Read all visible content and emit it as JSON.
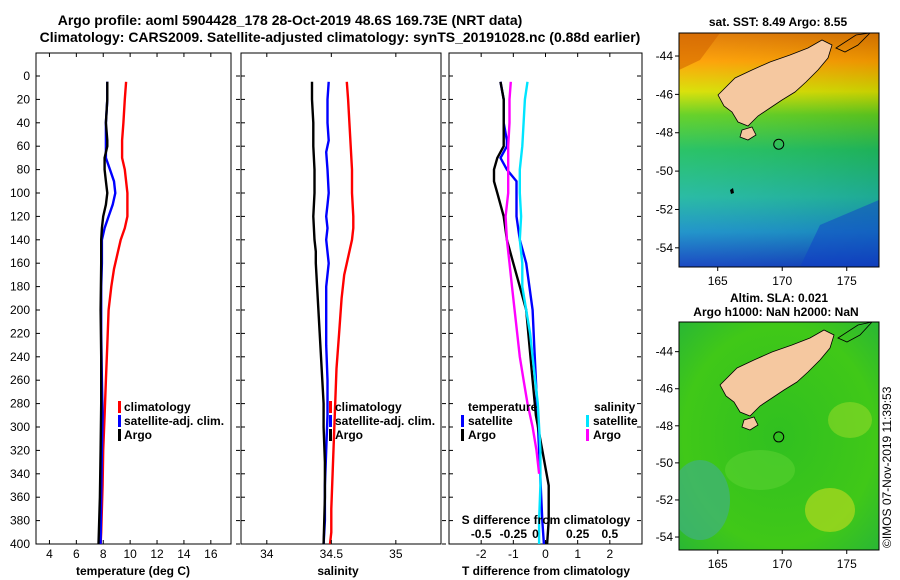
{
  "header": {
    "line1": "Argo profile: aoml 5904428_178 28-Oct-2019 48.6S 169.73E (NRT data)",
    "line2": "Climatology: CARS2009. Satellite-adjusted climatology: synTS_20191028.nc (0.88d earlier)"
  },
  "colors": {
    "climatology": "#ff0000",
    "satellite": "#0000ff",
    "argo": "#000000",
    "s_satellite": "#00e5ff",
    "s_argo": "#ff00ff",
    "land": "#f5c8a0"
  },
  "depth_axis": {
    "range": [
      0,
      400
    ],
    "ticks": [
      0,
      20,
      40,
      60,
      80,
      100,
      120,
      140,
      160,
      180,
      200,
      220,
      240,
      260,
      280,
      300,
      320,
      340,
      360,
      380,
      400
    ]
  },
  "chart_data": [
    {
      "type": "line",
      "name": "temperature",
      "xlabel": "temperature (deg C)",
      "xlim": [
        3,
        17.5
      ],
      "xticks": [
        4,
        6,
        8,
        10,
        12,
        14,
        16
      ],
      "legend": [
        "climatology",
        "satellite-adj. clim.",
        "Argo"
      ],
      "series": [
        {
          "name": "climatology",
          "color": "#ff0000",
          "x": [
            9.7,
            9.6,
            9.5,
            9.4,
            9.4,
            9.6,
            9.8,
            9.8,
            9.8,
            9.6,
            9.3,
            9.1,
            8.8,
            8.6,
            8.4,
            8.3,
            8.2,
            8.1,
            8.0,
            7.95,
            7.9,
            7.85,
            7.8
          ],
          "depth": [
            5,
            20,
            40,
            55,
            70,
            80,
            100,
            110,
            120,
            130,
            140,
            150,
            165,
            180,
            200,
            230,
            260,
            290,
            320,
            350,
            370,
            390,
            400
          ]
        },
        {
          "name": "satellite-adj. clim.",
          "color": "#0000ff",
          "x": [
            8.3,
            8.3,
            8.2,
            8.2,
            8.2,
            8.2,
            8.5,
            8.8,
            8.9,
            8.7,
            8.4,
            8.1,
            7.9,
            7.9,
            7.85,
            7.85,
            7.9,
            7.95,
            7.9,
            7.85,
            7.8
          ],
          "depth": [
            5,
            20,
            40,
            55,
            60,
            70,
            80,
            90,
            100,
            110,
            120,
            130,
            140,
            160,
            180,
            220,
            260,
            290,
            320,
            360,
            400
          ]
        },
        {
          "name": "Argo",
          "color": "#000000",
          "x": [
            8.3,
            8.3,
            8.2,
            8.3,
            8.3,
            8.1,
            8.1,
            8.2,
            8.3,
            8.2,
            8.0,
            7.9,
            7.85,
            7.85,
            7.8,
            7.85,
            7.85,
            7.8,
            7.75,
            7.7,
            7.65
          ],
          "depth": [
            5,
            20,
            40,
            55,
            60,
            70,
            80,
            90,
            100,
            110,
            120,
            130,
            140,
            160,
            200,
            240,
            280,
            320,
            360,
            380,
            400
          ]
        }
      ]
    },
    {
      "type": "line",
      "name": "salinity",
      "xlabel": "salinity",
      "xlim": [
        33.8,
        35.35
      ],
      "xticks": [
        34,
        34.5,
        35
      ],
      "xtick_labels": [
        "34",
        "34.5",
        "35"
      ],
      "legend": [
        "climatology",
        "satellite-adj. clim.",
        "Argo"
      ],
      "series": [
        {
          "name": "climatology",
          "color": "#ff0000",
          "x": [
            34.62,
            34.63,
            34.64,
            34.65,
            34.66,
            34.66,
            34.67,
            34.67,
            34.66,
            34.64,
            34.62,
            34.6,
            34.58,
            34.56,
            34.54,
            34.53,
            34.52,
            34.51,
            34.5,
            34.5,
            34.49
          ],
          "depth": [
            5,
            20,
            40,
            60,
            80,
            100,
            120,
            130,
            140,
            150,
            160,
            170,
            190,
            220,
            250,
            280,
            310,
            340,
            370,
            390,
            400
          ]
        },
        {
          "name": "satellite-adj. clim.",
          "color": "#0000ff",
          "x": [
            34.48,
            34.47,
            34.47,
            34.48,
            34.46,
            34.47,
            34.48,
            34.47,
            34.46,
            34.47,
            34.46,
            34.48,
            34.46,
            34.46,
            34.46,
            34.47,
            34.47,
            34.46,
            34.45,
            34.45,
            34.44
          ],
          "depth": [
            5,
            20,
            40,
            55,
            65,
            80,
            100,
            110,
            120,
            130,
            140,
            160,
            180,
            200,
            230,
            260,
            290,
            320,
            350,
            380,
            400
          ]
        },
        {
          "name": "Argo",
          "color": "#000000",
          "x": [
            34.35,
            34.35,
            34.36,
            34.36,
            34.37,
            34.37,
            34.36,
            34.37,
            34.38,
            34.38,
            34.39,
            34.4,
            34.41,
            34.42,
            34.43,
            34.44,
            34.44,
            34.45,
            34.45,
            34.44
          ],
          "depth": [
            5,
            20,
            40,
            60,
            80,
            100,
            120,
            140,
            150,
            160,
            180,
            200,
            220,
            240,
            260,
            280,
            300,
            330,
            360,
            400
          ]
        }
      ]
    },
    {
      "type": "line",
      "name": "difference",
      "xlabel": "T difference from climatology",
      "s_axis_label": "S difference from climatology",
      "xlim": [
        -3,
        3
      ],
      "xticks": [
        -2,
        -1,
        0,
        1,
        2
      ],
      "s_ticks": [
        "-0.5",
        "-0.25",
        "0",
        "0.25",
        "0.5"
      ],
      "s_tick_positions": [
        -2,
        -1,
        0,
        1,
        2
      ],
      "legend_left_title": "temperature",
      "legend_right_title": "salinity",
      "legend_left": [
        "satellite",
        "Argo"
      ],
      "legend_right": [
        "satellite",
        "Argo"
      ],
      "series": [
        {
          "name": "T satellite",
          "color": "#0000ff",
          "x": [
            -1.4,
            -1.3,
            -1.3,
            -1.2,
            -1.2,
            -1.4,
            -1.2,
            -0.9,
            -0.9,
            -0.9,
            -0.9,
            -0.8,
            -0.6,
            -0.5,
            -0.4,
            -0.35,
            -0.3,
            -0.25,
            -0.2,
            -0.15,
            -0.1,
            -0.05
          ],
          "depth": [
            5,
            20,
            40,
            55,
            60,
            70,
            80,
            90,
            100,
            110,
            120,
            140,
            160,
            180,
            200,
            230,
            260,
            290,
            320,
            350,
            380,
            400
          ]
        },
        {
          "name": "T Argo",
          "color": "#000000",
          "x": [
            -1.4,
            -1.3,
            -1.3,
            -1.3,
            -1.3,
            -1.5,
            -1.6,
            -1.6,
            -1.5,
            -1.4,
            -1.3,
            -1.2,
            -1.0,
            -0.8,
            -0.6,
            -0.5,
            -0.4,
            -0.3,
            -0.1,
            0.1,
            0.1,
            0.05
          ],
          "depth": [
            5,
            20,
            40,
            55,
            60,
            70,
            80,
            90,
            100,
            110,
            120,
            140,
            160,
            180,
            200,
            230,
            260,
            290,
            320,
            350,
            380,
            400
          ]
        },
        {
          "name": "S satellite",
          "color": "#00e5ff",
          "x": [
            -0.56,
            -0.64,
            -0.68,
            -0.72,
            -0.8,
            -0.8,
            -0.76,
            -0.8,
            -0.72,
            -0.72,
            -0.6,
            -0.48,
            -0.4,
            -0.32,
            -0.24,
            -0.2,
            -0.16,
            -0.16,
            -0.2,
            -0.2
          ],
          "depth": [
            5,
            20,
            40,
            60,
            80,
            100,
            120,
            140,
            160,
            180,
            200,
            220,
            240,
            260,
            280,
            300,
            320,
            350,
            380,
            400
          ]
        },
        {
          "name": "S Argo",
          "color": "#ff00ff",
          "x": [
            -1.08,
            -1.12,
            -1.12,
            -1.16,
            -1.16,
            -1.16,
            -1.24,
            -1.2,
            -1.12,
            -1.04,
            -0.96,
            -0.88,
            -0.8,
            -0.68,
            -0.56,
            -0.4,
            -0.28,
            -0.2
          ],
          "depth": [
            5,
            20,
            40,
            60,
            80,
            100,
            120,
            140,
            160,
            180,
            200,
            220,
            240,
            260,
            280,
            300,
            320,
            340
          ]
        }
      ]
    },
    {
      "type": "heatmap",
      "name": "sst-map",
      "title": "sat. SST: 8.49 Argo: 8.55",
      "xticks": [
        165,
        170,
        175
      ],
      "yticks": [
        -44,
        -46,
        -48,
        -50,
        -52,
        -54
      ],
      "xlim": [
        162,
        177.5
      ],
      "ylim": [
        -55.0,
        -42.8
      ],
      "profile_location": {
        "lon": 169.73,
        "lat": -48.6
      }
    },
    {
      "type": "heatmap",
      "name": "sla-map",
      "title1": "Altim. SLA: 0.021",
      "title2": "Argo h1000: NaN h2000: NaN",
      "xticks": [
        165,
        170,
        175
      ],
      "yticks": [
        -44,
        -46,
        -48,
        -50,
        -52,
        -54
      ],
      "xlim": [
        162,
        177.5
      ],
      "ylim": [
        -54.7,
        -42.4
      ],
      "profile_location": {
        "lon": 169.73,
        "lat": -48.6
      }
    }
  ],
  "credit": "©IMOS 07-Nov-2019 11:39:53"
}
